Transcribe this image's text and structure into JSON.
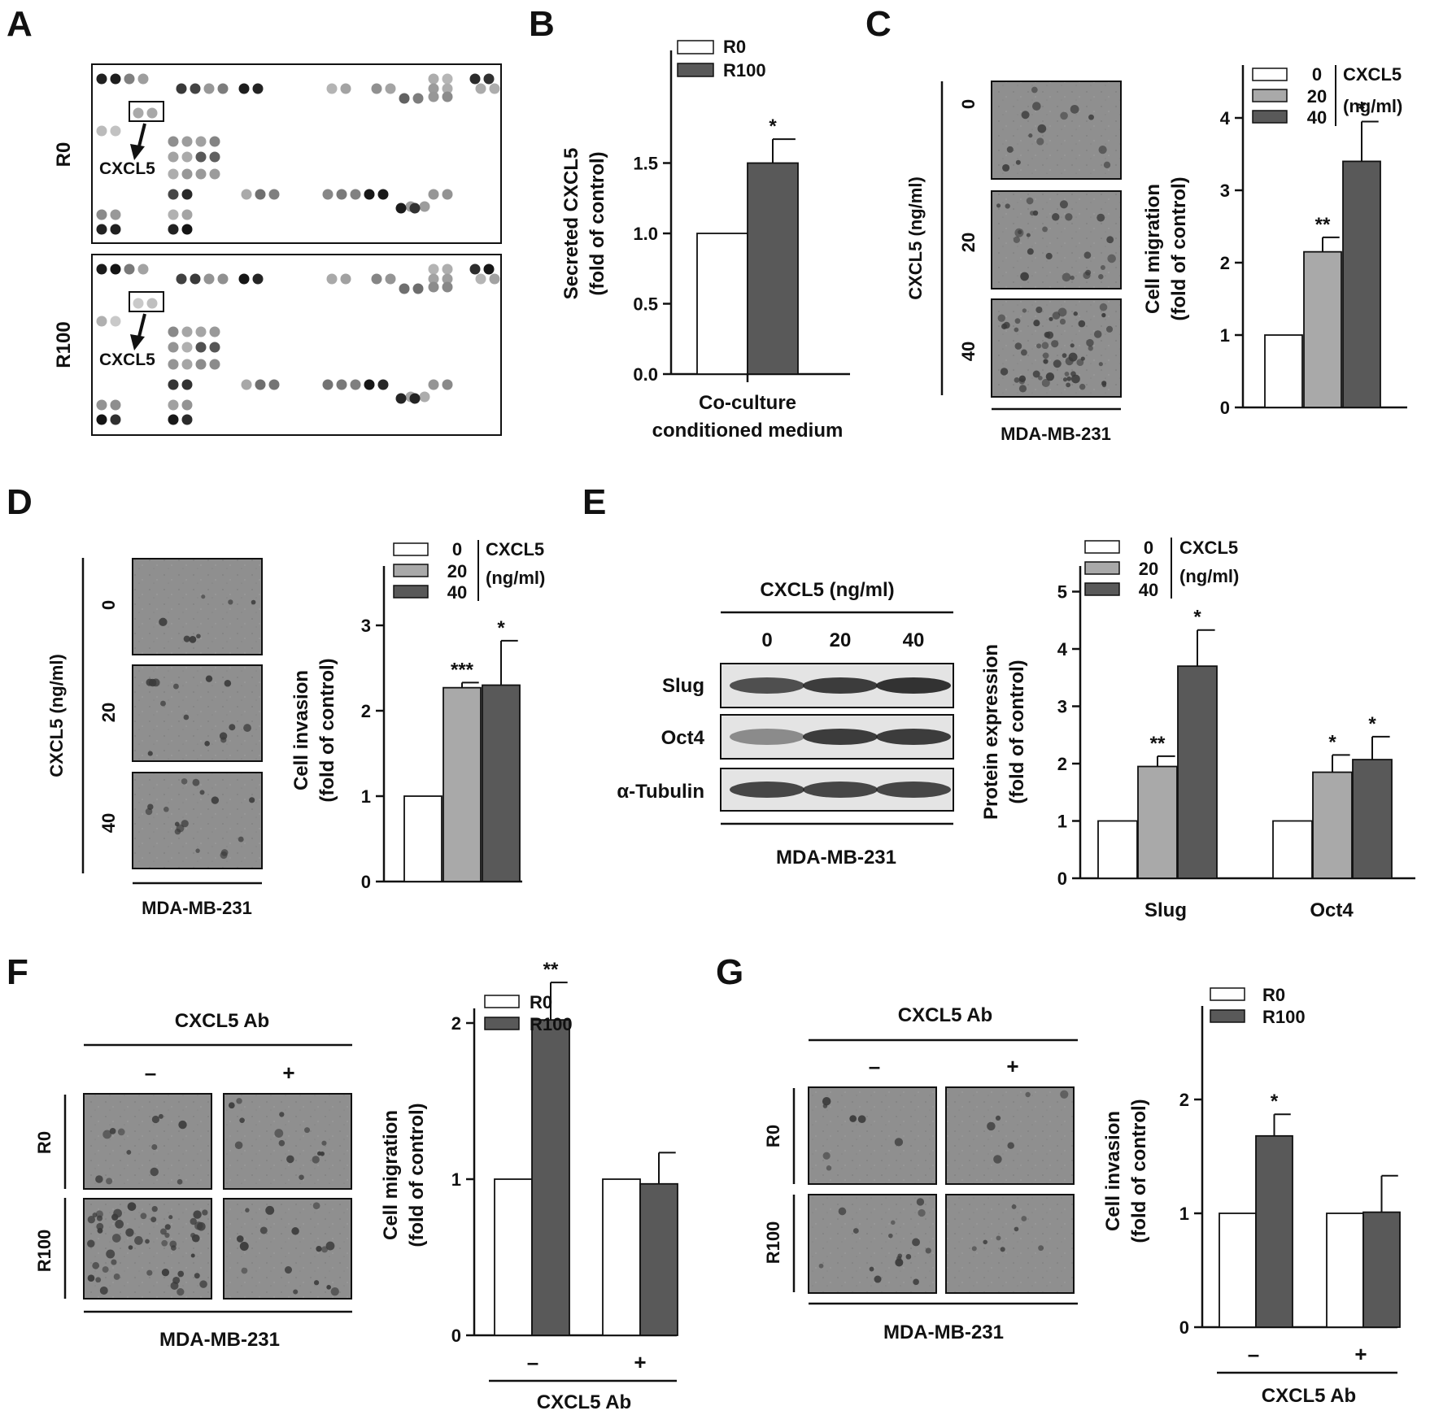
{
  "panels": {
    "A": {
      "letter": "A",
      "rows": [
        "R0",
        "R100"
      ],
      "callout": "CXCL5"
    },
    "B": {
      "letter": "B",
      "legend": [
        "R0",
        "R100"
      ],
      "ylabel_line1": "Secreted CXCL5",
      "ylabel_line2": "(fold of control)",
      "xlabel_line1": "Co-culture",
      "xlabel_line2": "conditioned medium",
      "yticks": [
        "0.0",
        "0.5",
        "1.0",
        "1.5"
      ],
      "sig": "*"
    },
    "C": {
      "letter": "C",
      "side_label": "CXCL5 (ng/ml)",
      "row_labels": [
        "0",
        "20",
        "40"
      ],
      "cell_line": "MDA-MB-231",
      "legend_values": [
        "0",
        "20",
        "40"
      ],
      "legend_title_1": "CXCL5",
      "legend_title_2": "(ng/ml)",
      "ylabel_line1": "Cell migration",
      "ylabel_line2": "(fold of control)",
      "yticks": [
        "0",
        "1",
        "2",
        "3",
        "4"
      ],
      "sig": [
        "",
        "**",
        "*"
      ]
    },
    "D": {
      "letter": "D",
      "side_label": "CXCL5 (ng/ml)",
      "row_labels": [
        "0",
        "20",
        "40"
      ],
      "cell_line": "MDA-MB-231",
      "legend_values": [
        "0",
        "20",
        "40"
      ],
      "legend_title_1": "CXCL5",
      "legend_title_2": "(ng/ml)",
      "ylabel_line1": "Cell invasion",
      "ylabel_line2": "(fold of control)",
      "yticks": [
        "0",
        "1",
        "2",
        "3"
      ],
      "sig": [
        "",
        "***",
        "*"
      ]
    },
    "E": {
      "letter": "E",
      "blot_title": "CXCL5 (ng/ml)",
      "lanes": [
        "0",
        "20",
        "40"
      ],
      "bands": [
        "Slug",
        "Oct4",
        "α-Tubulin"
      ],
      "cell_line": "MDA-MB-231",
      "legend_values": [
        "0",
        "20",
        "40"
      ],
      "legend_title_1": "CXCL5",
      "legend_title_2": "(ng/ml)",
      "ylabel_line1": "Protein expression",
      "ylabel_line2": "(fold of control)",
      "yticks": [
        "0",
        "1",
        "2",
        "3",
        "4",
        "5"
      ],
      "groups": [
        "Slug",
        "Oct4"
      ],
      "sig": [
        [
          "",
          "**",
          "*"
        ],
        [
          "",
          "*",
          "*"
        ]
      ]
    },
    "F": {
      "letter": "F",
      "ab_label": "CXCL5 Ab",
      "minus": "–",
      "plus": "+",
      "rows": [
        "R0",
        "R100"
      ],
      "cell_line": "MDA-MB-231",
      "legend": [
        "R0",
        "R100"
      ],
      "ylabel_line1": "Cell migration",
      "ylabel_line2": "(fold of control)",
      "yticks": [
        "0",
        "1",
        "2"
      ],
      "sig": [
        [
          "",
          "**"
        ],
        [
          "",
          ""
        ]
      ]
    },
    "G": {
      "letter": "G",
      "ab_label": "CXCL5 Ab",
      "minus": "–",
      "plus": "+",
      "rows": [
        "R0",
        "R100"
      ],
      "cell_line": "MDA-MB-231",
      "legend": [
        "R0",
        "R100"
      ],
      "ylabel_line1": "Cell invasion",
      "ylabel_line2": "(fold of control)",
      "yticks": [
        "0",
        "1",
        "2"
      ],
      "sig": [
        [
          "",
          "*"
        ],
        [
          "",
          ""
        ]
      ]
    }
  },
  "colors": {
    "white": "#ffffff",
    "light": "#a9a9a9",
    "dark": "#595959",
    "micrograph": "#909090"
  },
  "chart_data": [
    {
      "panel": "B",
      "type": "bar",
      "categories": [
        "Co-culture conditioned medium"
      ],
      "series": [
        {
          "name": "R0",
          "values": [
            1.0
          ],
          "errors": [
            0
          ]
        },
        {
          "name": "R100",
          "values": [
            1.5
          ],
          "errors": [
            0.17
          ]
        }
      ],
      "ylabel": "Secreted CXCL5 (fold of control)",
      "ylim": [
        0,
        2.0
      ]
    },
    {
      "panel": "C",
      "type": "bar",
      "categories": [
        "0",
        "20",
        "40"
      ],
      "values": [
        1.0,
        2.15,
        3.4
      ],
      "errors": [
        0,
        0.2,
        0.55
      ],
      "ylabel": "Cell migration (fold of control)",
      "ylim": [
        0,
        5
      ]
    },
    {
      "panel": "D",
      "type": "bar",
      "categories": [
        "0",
        "20",
        "40"
      ],
      "values": [
        1.0,
        2.27,
        2.3
      ],
      "errors": [
        0,
        0.06,
        0.52
      ],
      "ylabel": "Cell invasion (fold of control)",
      "ylim": [
        0,
        3.5
      ]
    },
    {
      "panel": "E",
      "type": "bar",
      "categories": [
        "Slug",
        "Oct4"
      ],
      "series": [
        {
          "name": "0",
          "values": [
            1.0,
            1.0
          ],
          "errors": [
            0,
            0
          ]
        },
        {
          "name": "20",
          "values": [
            1.95,
            1.85
          ],
          "errors": [
            0.18,
            0.3
          ]
        },
        {
          "name": "40",
          "values": [
            3.7,
            2.07
          ],
          "errors": [
            0.63,
            0.4
          ]
        }
      ],
      "ylabel": "Protein expression (fold of control)",
      "ylim": [
        0,
        5.5
      ]
    },
    {
      "panel": "F",
      "type": "bar",
      "categories": [
        "–",
        "+"
      ],
      "series": [
        {
          "name": "R0",
          "values": [
            1.0,
            1.0
          ],
          "errors": [
            0,
            0
          ]
        },
        {
          "name": "R100",
          "values": [
            2.02,
            0.97
          ],
          "errors": [
            0.24,
            0.2
          ]
        }
      ],
      "xlabel": "CXCL5 Ab",
      "ylabel": "Cell migration (fold of control)",
      "ylim": [
        0,
        2.75
      ]
    },
    {
      "panel": "G",
      "type": "bar",
      "categories": [
        "–",
        "+"
      ],
      "series": [
        {
          "name": "R0",
          "values": [
            1.0,
            1.0
          ],
          "errors": [
            0,
            0
          ]
        },
        {
          "name": "R100",
          "values": [
            1.68,
            1.01
          ],
          "errors": [
            0.19,
            0.32
          ]
        }
      ],
      "xlabel": "CXCL5 Ab",
      "ylabel": "Cell invasion (fold of control)",
      "ylim": [
        0,
        2.75
      ]
    }
  ]
}
